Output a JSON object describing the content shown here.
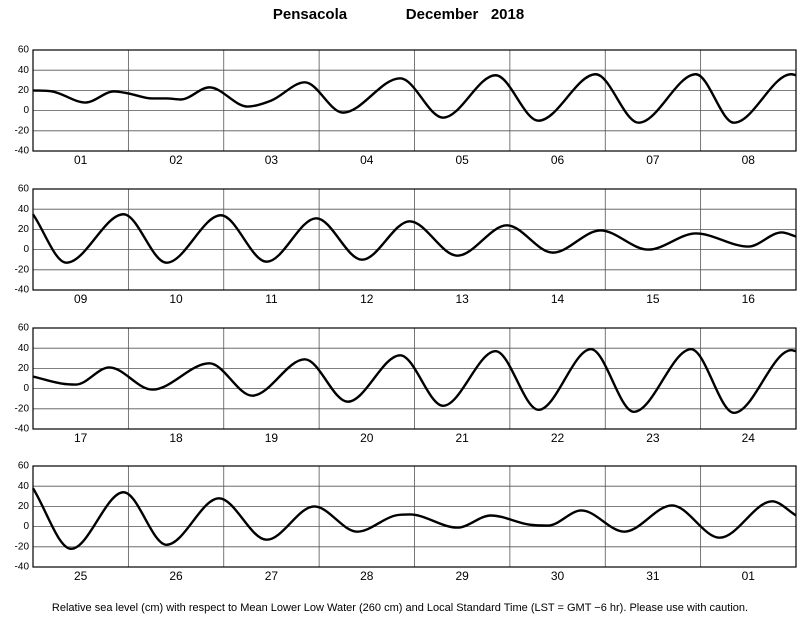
{
  "title": {
    "place": "Pensacola",
    "period": "December   2018"
  },
  "note": "Relative sea level (cm) with respect to Mean Lower Low Water (260 cm) and Local Standard Time (LST = GMT −6 hr). Please use with caution.",
  "chart_data": [
    {
      "type": "line",
      "color": "#000000",
      "grid": true,
      "categories": [
        "01",
        "02",
        "03",
        "04",
        "05",
        "06",
        "07",
        "08"
      ],
      "xlim": [
        1,
        9
      ],
      "xticks": [
        2,
        3,
        4,
        5,
        6,
        7,
        8
      ],
      "ylim": [
        -40,
        60
      ],
      "yticks": [
        -40,
        -20,
        0,
        20,
        40,
        60
      ],
      "x": [
        1.0,
        1.2,
        1.55,
        1.85,
        2.0,
        2.25,
        2.4,
        2.55,
        2.85,
        3.25,
        3.5,
        3.85,
        4.25,
        4.85,
        5.3,
        5.85,
        6.3,
        6.9,
        7.35,
        7.95,
        8.35,
        8.95,
        9.0
      ],
      "values": [
        20,
        19,
        8,
        19,
        17,
        12,
        12,
        11,
        23,
        4,
        10,
        28,
        -2,
        32,
        -7,
        35,
        -10,
        36,
        -12,
        36,
        -12,
        36,
        35
      ]
    },
    {
      "type": "line",
      "color": "#000000",
      "grid": true,
      "categories": [
        "09",
        "10",
        "11",
        "12",
        "13",
        "14",
        "15",
        "16"
      ],
      "xlim": [
        9,
        17
      ],
      "xticks": [
        10,
        11,
        12,
        13,
        14,
        15,
        16
      ],
      "ylim": [
        -40,
        60
      ],
      "yticks": [
        -40,
        -20,
        0,
        20,
        40,
        60
      ],
      "x": [
        9.0,
        9.35,
        9.95,
        10.4,
        10.97,
        11.45,
        11.97,
        12.45,
        12.95,
        13.45,
        13.97,
        14.45,
        14.95,
        15.45,
        15.95,
        16.5,
        16.85,
        17.0
      ],
      "values": [
        35,
        -13,
        35,
        -13,
        34,
        -12,
        31,
        -10,
        28,
        -6,
        24,
        -3,
        19,
        0,
        16,
        3,
        17,
        13
      ]
    },
    {
      "type": "line",
      "color": "#000000",
      "grid": true,
      "categories": [
        "17",
        "18",
        "19",
        "20",
        "21",
        "22",
        "23",
        "24"
      ],
      "xlim": [
        17,
        25
      ],
      "xticks": [
        18,
        19,
        20,
        21,
        22,
        23,
        24
      ],
      "ylim": [
        -40,
        60
      ],
      "yticks": [
        -40,
        -20,
        0,
        20,
        40,
        60
      ],
      "x": [
        17.0,
        17.3,
        17.45,
        17.8,
        18.25,
        18.85,
        19.3,
        19.85,
        20.3,
        20.85,
        21.3,
        21.85,
        22.3,
        22.85,
        23.3,
        23.9,
        24.35,
        24.95,
        25.0
      ],
      "values": [
        12,
        5,
        4,
        21,
        -1,
        25,
        -7,
        29,
        -13,
        33,
        -17,
        37,
        -21,
        39,
        -23,
        39,
        -24,
        38,
        37
      ]
    },
    {
      "type": "line",
      "color": "#000000",
      "grid": true,
      "categories": [
        "25",
        "26",
        "27",
        "28",
        "29",
        "30",
        "31",
        "01"
      ],
      "xlim": [
        25,
        33
      ],
      "xticks": [
        26,
        27,
        28,
        29,
        30,
        31,
        32
      ],
      "ylim": [
        -40,
        60
      ],
      "yticks": [
        -40,
        -20,
        0,
        20,
        40,
        60
      ],
      "x": [
        25.0,
        25.4,
        25.95,
        26.4,
        26.95,
        27.45,
        27.95,
        28.4,
        28.8,
        28.95,
        29.45,
        29.8,
        30.2,
        30.4,
        30.75,
        31.2,
        31.7,
        32.2,
        32.75,
        33.0
      ],
      "values": [
        38,
        -22,
        34,
        -18,
        28,
        -13,
        20,
        -5,
        11,
        12,
        -1,
        11,
        2,
        1,
        16,
        -5,
        21,
        -11,
        25,
        11
      ]
    }
  ]
}
